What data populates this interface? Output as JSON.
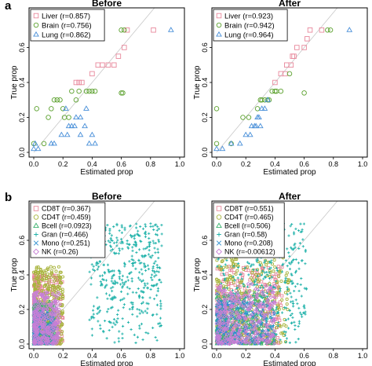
{
  "figure": {
    "panel_labels": [
      "a",
      "b"
    ]
  },
  "legend_symbols": {
    "Liver": "square",
    "Brain": "circle",
    "Lung": "triangle",
    "CD8T": "square",
    "CD4T": "circle",
    "Bcell": "triangle",
    "Gran": "plus",
    "Mono": "cross",
    "NK": "diamond"
  },
  "colors": {
    "Liver": "#e8889c",
    "Brain": "#5aa02c",
    "Lung": "#4a90d9",
    "CD8T": "#e8889c",
    "CD4T": "#a8b43c",
    "Bcell": "#3cb371",
    "Gran": "#20b2aa",
    "Mono": "#2f8fd0",
    "NK": "#c77fd6"
  },
  "chart_data": [
    {
      "id": "a-before",
      "type": "scatter",
      "title": "Before",
      "xlabel": "Estimated prop",
      "ylabel": "True prop",
      "xlim": [
        0,
        1
      ],
      "ylim": [
        0,
        0.8
      ],
      "xticks": [
        "0.0",
        "0.2",
        "0.4",
        "0.6",
        "0.8",
        "1.0"
      ],
      "yticks": [
        "0.0",
        "0.2",
        "0.4",
        "0.6"
      ],
      "diagonal": true,
      "legend_position": "top-left",
      "series": [
        {
          "name": "Liver (r=0.857)",
          "points": [
            [
              0.29,
              0.4
            ],
            [
              0.31,
              0.4
            ],
            [
              0.33,
              0.4
            ],
            [
              0.4,
              0.45
            ],
            [
              0.44,
              0.5
            ],
            [
              0.47,
              0.5
            ],
            [
              0.51,
              0.5
            ],
            [
              0.55,
              0.5
            ],
            [
              0.58,
              0.55
            ],
            [
              0.62,
              0.6
            ],
            [
              0.82,
              0.7
            ],
            [
              0.64,
              0.7
            ]
          ]
        },
        {
          "name": "Brain (r=0.756)",
          "points": [
            [
              0.0,
              0.05
            ],
            [
              0.02,
              0.25
            ],
            [
              0.07,
              0.05
            ],
            [
              0.1,
              0.2
            ],
            [
              0.12,
              0.25
            ],
            [
              0.14,
              0.3
            ],
            [
              0.16,
              0.3
            ],
            [
              0.18,
              0.3
            ],
            [
              0.2,
              0.25
            ],
            [
              0.21,
              0.2
            ],
            [
              0.24,
              0.2
            ],
            [
              0.26,
              0.35
            ],
            [
              0.29,
              0.3
            ],
            [
              0.31,
              0.35
            ],
            [
              0.36,
              0.35
            ],
            [
              0.38,
              0.35
            ],
            [
              0.4,
              0.35
            ],
            [
              0.42,
              0.35
            ],
            [
              0.6,
              0.34
            ],
            [
              0.61,
              0.34
            ],
            [
              0.6,
              0.7
            ],
            [
              0.62,
              0.7
            ]
          ]
        },
        {
          "name": "Lung (r=0.862)",
          "points": [
            [
              0.0,
              0.02
            ],
            [
              0.01,
              0.05
            ],
            [
              0.03,
              0.02
            ],
            [
              0.12,
              0.05
            ],
            [
              0.14,
              0.05
            ],
            [
              0.19,
              0.1
            ],
            [
              0.22,
              0.25
            ],
            [
              0.23,
              0.1
            ],
            [
              0.24,
              0.15
            ],
            [
              0.26,
              0.15
            ],
            [
              0.28,
              0.15
            ],
            [
              0.29,
              0.2
            ],
            [
              0.32,
              0.2
            ],
            [
              0.32,
              0.1
            ],
            [
              0.35,
              0.15
            ],
            [
              0.36,
              0.25
            ],
            [
              0.38,
              0.05
            ],
            [
              0.42,
              0.05
            ],
            [
              0.4,
              0.1
            ],
            [
              0.94,
              0.7
            ]
          ]
        }
      ]
    },
    {
      "id": "a-after",
      "type": "scatter",
      "title": "After",
      "xlabel": "Estimated prop",
      "ylabel": "True prop",
      "xlim": [
        0,
        1
      ],
      "ylim": [
        0,
        0.8
      ],
      "xticks": [
        "0.0",
        "0.2",
        "0.4",
        "0.6",
        "0.8",
        "1.0"
      ],
      "yticks": [
        "0.0",
        "0.2",
        "0.4",
        "0.6"
      ],
      "diagonal": true,
      "legend_position": "top-left",
      "series": [
        {
          "name": "Liver (r=0.923)",
          "points": [
            [
              0.4,
              0.4
            ],
            [
              0.44,
              0.45
            ],
            [
              0.47,
              0.45
            ],
            [
              0.48,
              0.5
            ],
            [
              0.51,
              0.5
            ],
            [
              0.52,
              0.55
            ],
            [
              0.53,
              0.55
            ],
            [
              0.55,
              0.6
            ],
            [
              0.6,
              0.6
            ],
            [
              0.62,
              0.65
            ],
            [
              0.72,
              0.7
            ],
            [
              0.64,
              0.7
            ]
          ]
        },
        {
          "name": "Brain (r=0.942)",
          "points": [
            [
              0.0,
              0.05
            ],
            [
              0.0,
              0.25
            ],
            [
              0.1,
              0.05
            ],
            [
              0.18,
              0.2
            ],
            [
              0.22,
              0.2
            ],
            [
              0.28,
              0.25
            ],
            [
              0.3,
              0.3
            ],
            [
              0.31,
              0.3
            ],
            [
              0.33,
              0.3
            ],
            [
              0.35,
              0.3
            ],
            [
              0.36,
              0.3
            ],
            [
              0.38,
              0.35
            ],
            [
              0.4,
              0.35
            ],
            [
              0.41,
              0.35
            ],
            [
              0.44,
              0.35
            ],
            [
              0.5,
              0.45
            ],
            [
              0.6,
              0.34
            ],
            [
              0.76,
              0.7
            ],
            [
              0.78,
              0.7
            ]
          ]
        },
        {
          "name": "Lung (r=0.964)",
          "points": [
            [
              0.0,
              0.02
            ],
            [
              0.04,
              0.02
            ],
            [
              0.1,
              0.05
            ],
            [
              0.16,
              0.05
            ],
            [
              0.2,
              0.1
            ],
            [
              0.23,
              0.1
            ],
            [
              0.24,
              0.15
            ],
            [
              0.26,
              0.15
            ],
            [
              0.27,
              0.15
            ],
            [
              0.28,
              0.2
            ],
            [
              0.29,
              0.2
            ],
            [
              0.3,
              0.15
            ],
            [
              0.31,
              0.25
            ],
            [
              0.33,
              0.25
            ],
            [
              0.35,
              0.3
            ],
            [
              0.91,
              0.7
            ]
          ]
        }
      ]
    },
    {
      "id": "b-before",
      "type": "scatter",
      "title": "Before",
      "xlabel": "Estimated prop",
      "ylabel": "True prop",
      "xlim": [
        0,
        1
      ],
      "ylim": [
        0,
        0.8
      ],
      "xticks": [
        "0.0",
        "0.2",
        "0.4",
        "0.6",
        "0.8",
        "1.0"
      ],
      "yticks": [
        "0.0",
        "0.2",
        "0.4",
        "0.6"
      ],
      "diagonal": true,
      "legend_position": "top-left",
      "series": [
        {
          "name": "CD8T (r=0.367)",
          "cloud": {
            "n": 360,
            "xmin": 0.0,
            "xmax": 0.2,
            "ymin": 0.0,
            "ymax": 0.4,
            "skew": 1.6
          }
        },
        {
          "name": "CD4T (r=0.459)",
          "cloud": {
            "n": 380,
            "xmin": 0.0,
            "xmax": 0.2,
            "ymin": 0.0,
            "ymax": 0.45,
            "skew": 1.3
          }
        },
        {
          "name": "Bcell (r=0.0923)",
          "cloud": {
            "n": 240,
            "xmin": 0.0,
            "xmax": 0.15,
            "ymin": 0.0,
            "ymax": 0.25,
            "skew": 2.0
          }
        },
        {
          "name": "Gran (r=0.466)",
          "cloud": {
            "n": 430,
            "xmin": 0.38,
            "xmax": 0.88,
            "ymin": 0.0,
            "ymax": 0.7,
            "skew": 0.8
          }
        },
        {
          "name": "Mono (r=0.251)",
          "cloud": {
            "n": 260,
            "xmin": 0.0,
            "xmax": 0.15,
            "ymin": 0.0,
            "ymax": 0.2,
            "skew": 2.0
          }
        },
        {
          "name": "NK (r=0.26)",
          "cloud": {
            "n": 300,
            "xmin": 0.0,
            "xmax": 0.18,
            "ymin": 0.0,
            "ymax": 0.3,
            "skew": 1.5
          }
        }
      ]
    },
    {
      "id": "b-after",
      "type": "scatter",
      "title": "After",
      "xlabel": "Estimated prop",
      "ylabel": "True prop",
      "xlim": [
        0,
        1
      ],
      "ylim": [
        0,
        0.8
      ],
      "xticks": [
        "0.0",
        "0.2",
        "0.4",
        "0.6",
        "0.8",
        "1.0"
      ],
      "yticks": [
        "0.0",
        "0.2",
        "0.4",
        "0.6"
      ],
      "diagonal": true,
      "legend_position": "top-left",
      "series": [
        {
          "name": "CD8T (r=0.551)",
          "cloud": {
            "n": 320,
            "xmin": 0.0,
            "xmax": 0.45,
            "ymin": 0.0,
            "ymax": 0.45,
            "skew": 1.4
          }
        },
        {
          "name": "CD4T (r=0.465)",
          "cloud": {
            "n": 340,
            "xmin": 0.0,
            "xmax": 0.5,
            "ymin": 0.0,
            "ymax": 0.5,
            "skew": 1.3
          }
        },
        {
          "name": "Bcell (r=0.506)",
          "cloud": {
            "n": 240,
            "xmin": 0.0,
            "xmax": 0.4,
            "ymin": 0.0,
            "ymax": 0.3,
            "skew": 1.6
          }
        },
        {
          "name": "Gran (r=0.58)",
          "cloud": {
            "n": 420,
            "xmin": 0.0,
            "xmax": 0.62,
            "ymin": 0.0,
            "ymax": 0.7,
            "skew": 1.0
          }
        },
        {
          "name": "Mono (r=0.208)",
          "cloud": {
            "n": 260,
            "xmin": 0.0,
            "xmax": 0.4,
            "ymin": 0.0,
            "ymax": 0.25,
            "skew": 1.6
          }
        },
        {
          "name": "NK (r=-0.00612)",
          "cloud": {
            "n": 320,
            "xmin": 0.0,
            "xmax": 0.4,
            "ymin": 0.0,
            "ymax": 0.35,
            "skew": 1.4
          }
        }
      ]
    }
  ]
}
